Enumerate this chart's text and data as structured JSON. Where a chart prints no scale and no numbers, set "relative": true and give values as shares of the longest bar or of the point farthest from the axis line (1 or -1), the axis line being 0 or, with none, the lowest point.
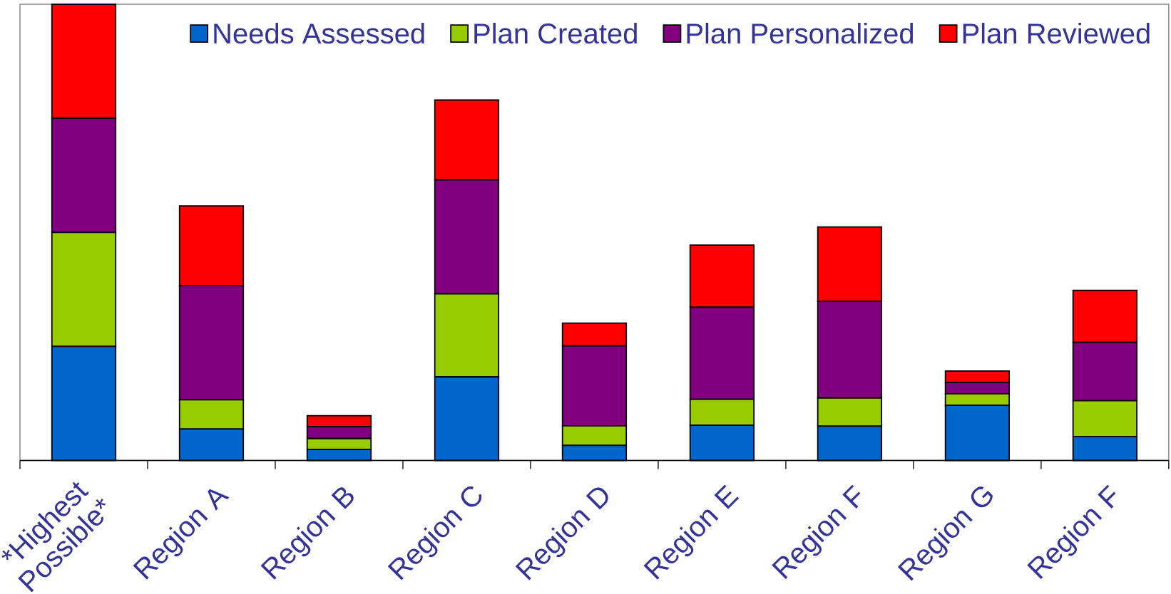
{
  "chart_data": {
    "type": "bar",
    "stacked": true,
    "relative": true,
    "legend": "top right",
    "categories": [
      "*Highest Possible*",
      "Region A",
      "Region B",
      "Region C",
      "Region D",
      "Region E",
      "Region F",
      "Region G",
      "Region F"
    ],
    "series": [
      {
        "name": "Needs Assessed",
        "color": "#0066cc",
        "values": [
          0.25,
          0.069,
          0.024,
          0.183,
          0.033,
          0.077,
          0.075,
          0.121,
          0.052
        ]
      },
      {
        "name": "Plan Created",
        "color": "#99cc00",
        "values": [
          0.25,
          0.064,
          0.024,
          0.182,
          0.043,
          0.057,
          0.062,
          0.025,
          0.079
        ]
      },
      {
        "name": "Plan Personalized",
        "color": "#800080",
        "values": [
          0.25,
          0.25,
          0.026,
          0.25,
          0.175,
          0.202,
          0.212,
          0.025,
          0.128
        ]
      },
      {
        "name": "Plan Reviewed",
        "color": "#ff0000",
        "values": [
          0.25,
          0.175,
          0.024,
          0.175,
          0.05,
          0.136,
          0.163,
          0.025,
          0.114
        ]
      }
    ]
  }
}
